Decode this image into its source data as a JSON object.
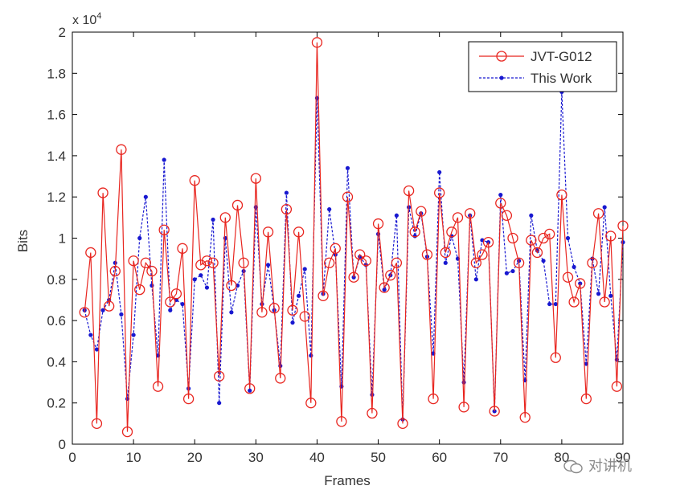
{
  "chart_data": {
    "type": "line",
    "title": "",
    "xlabel": "Frames",
    "ylabel": "Bits",
    "y_scale_label": "x 10",
    "y_scale_exponent": "4",
    "xlim": [
      0,
      90
    ],
    "ylim": [
      0,
      2
    ],
    "xticks": [
      0,
      10,
      20,
      30,
      40,
      50,
      60,
      70,
      80,
      90
    ],
    "yticks": [
      0,
      0.2,
      0.4,
      0.6,
      0.8,
      1,
      1.2,
      1.4,
      1.6,
      1.8,
      2
    ],
    "ytick_labels": [
      "0",
      "0.2",
      "0.4",
      "0.6",
      "0.8",
      "1",
      "1.2",
      "1.4",
      "1.6",
      "1.8",
      "2"
    ],
    "legend_position": "top-right",
    "x": [
      2,
      3,
      4,
      5,
      6,
      7,
      8,
      9,
      10,
      11,
      12,
      13,
      14,
      15,
      16,
      17,
      18,
      19,
      20,
      21,
      22,
      23,
      24,
      25,
      26,
      27,
      28,
      29,
      30,
      31,
      32,
      33,
      34,
      35,
      36,
      37,
      38,
      39,
      40,
      41,
      42,
      43,
      44,
      45,
      46,
      47,
      48,
      49,
      50,
      51,
      52,
      53,
      54,
      55,
      56,
      57,
      58,
      59,
      60,
      61,
      62,
      63,
      64,
      65,
      66,
      67,
      68,
      69,
      70,
      71,
      72,
      73,
      74,
      75,
      76,
      77,
      78,
      79,
      80,
      81,
      82,
      83,
      84,
      85,
      86,
      87,
      88,
      89,
      90
    ],
    "series": [
      {
        "name": "JVT-G012",
        "color": "#e8251f",
        "marker": "circle",
        "style": "solid",
        "values": [
          0.64,
          0.93,
          0.1,
          1.22,
          0.67,
          0.84,
          1.43,
          0.06,
          0.89,
          0.75,
          0.88,
          0.84,
          0.28,
          1.04,
          0.69,
          0.73,
          0.95,
          0.22,
          1.28,
          0.87,
          0.89,
          0.88,
          0.33,
          1.1,
          0.77,
          1.16,
          0.88,
          0.27,
          1.29,
          0.64,
          1.03,
          0.66,
          0.32,
          1.14,
          0.65,
          1.03,
          0.62,
          0.2,
          1.95,
          0.72,
          0.88,
          0.95,
          0.11,
          1.2,
          0.81,
          0.92,
          0.89,
          0.15,
          1.07,
          0.76,
          0.82,
          0.88,
          0.1,
          1.23,
          1.03,
          1.13,
          0.92,
          0.22,
          1.22,
          0.93,
          1.03,
          1.1,
          0.18,
          1.12,
          0.88,
          0.92,
          0.98,
          0.16,
          1.17,
          1.11,
          1.0,
          0.88,
          0.13,
          0.99,
          0.93,
          1.0,
          1.02,
          0.42,
          1.21,
          0.81,
          0.69,
          0.78,
          0.22,
          0.88,
          1.12,
          0.69,
          1.01,
          0.28,
          1.06
        ]
      },
      {
        "name": "This Work",
        "color": "#1818d0",
        "marker": "dot",
        "style": "dotted",
        "values": [
          0.65,
          0.53,
          0.46,
          0.65,
          0.7,
          0.88,
          0.63,
          0.22,
          0.53,
          1.0,
          1.2,
          0.77,
          0.43,
          1.38,
          0.65,
          0.7,
          0.68,
          0.27,
          0.8,
          0.82,
          0.76,
          1.09,
          0.2,
          1.0,
          0.64,
          0.77,
          0.84,
          0.26,
          1.15,
          0.68,
          0.87,
          0.65,
          0.38,
          1.22,
          0.59,
          0.72,
          0.85,
          0.43,
          1.68,
          0.73,
          1.14,
          0.92,
          0.28,
          1.34,
          0.81,
          0.91,
          0.87,
          0.24,
          1.02,
          0.75,
          0.82,
          1.11,
          0.12,
          1.15,
          1.01,
          1.12,
          0.91,
          0.44,
          1.32,
          0.88,
          1.01,
          0.9,
          0.3,
          1.11,
          0.8,
          0.99,
          0.98,
          0.16,
          1.21,
          0.83,
          0.84,
          0.89,
          0.31,
          1.11,
          0.94,
          0.89,
          0.68,
          0.68,
          1.71,
          1.0,
          0.86,
          0.78,
          0.39,
          0.9,
          0.73,
          1.15,
          0.72,
          0.41,
          0.98
        ]
      }
    ]
  },
  "watermark": {
    "text": "对讲机",
    "icon": "wechat-icon"
  }
}
